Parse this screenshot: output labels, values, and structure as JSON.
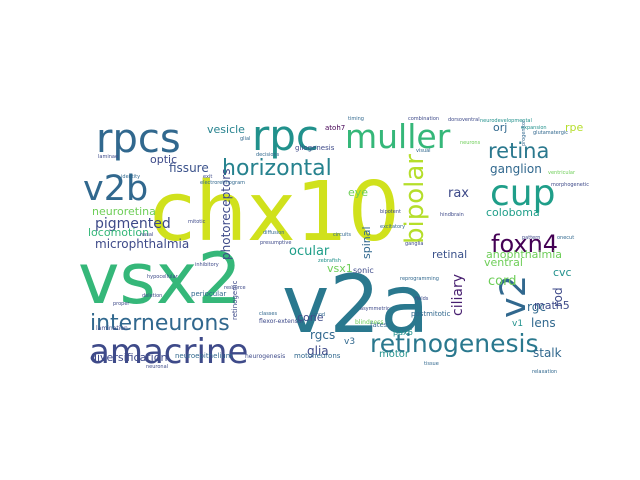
{
  "figure": {
    "type": "word-cloud",
    "background": "#ffffff",
    "palette": "viridis",
    "words": [
      {
        "text": "chx10",
        "color": "#d0e11c"
      },
      {
        "text": "v2a",
        "color": "#2a788e"
      },
      {
        "text": "vsx2",
        "color": "#35b779"
      },
      {
        "text": "amacrine",
        "color": "#3e4a89"
      },
      {
        "text": "rpcs",
        "color": "#31688e"
      },
      {
        "text": "rpc",
        "color": "#21918c"
      },
      {
        "text": "muller",
        "color": "#35b779"
      },
      {
        "text": "cup",
        "color": "#1f9e89"
      },
      {
        "text": "v2b",
        "color": "#31688e"
      },
      {
        "text": "retinogenesis",
        "color": "#2a788e"
      },
      {
        "text": "horizontal",
        "color": "#26828e"
      },
      {
        "text": "bipolar",
        "color": "#b5de2b"
      },
      {
        "text": "foxn4",
        "color": "#440154"
      },
      {
        "text": "v2",
        "color": "#31688e"
      },
      {
        "text": "interneurons",
        "color": "#31688e"
      },
      {
        "text": "retina",
        "color": "#2a788e"
      },
      {
        "text": "photoreceptors",
        "color": "#3e4a89"
      },
      {
        "text": "ganglion",
        "color": "#31688e"
      },
      {
        "text": "pigmented",
        "color": "#3e4a89"
      },
      {
        "text": "neuroretina",
        "color": "#6ece58"
      },
      {
        "text": "microphthalmia",
        "color": "#3e4a89"
      },
      {
        "text": "locomotion",
        "color": "#35b779"
      },
      {
        "text": "coloboma",
        "color": "#1f9e89"
      },
      {
        "text": "anophthalmia",
        "color": "#6ece58"
      },
      {
        "text": "fissure",
        "color": "#3b528b"
      },
      {
        "text": "optic",
        "color": "#3e4a89"
      },
      {
        "text": "vesicle",
        "color": "#26828e"
      },
      {
        "text": "rpe",
        "color": "#b5de2b"
      },
      {
        "text": "orj",
        "color": "#31688e"
      },
      {
        "text": "rax",
        "color": "#3e4a89"
      },
      {
        "text": "eye",
        "color": "#6ece58"
      },
      {
        "text": "ocular",
        "color": "#1f9e89"
      },
      {
        "text": "spinal",
        "color": "#31688e"
      },
      {
        "text": "retinal",
        "color": "#3b528b"
      },
      {
        "text": "ciliary",
        "color": "#481f70"
      },
      {
        "text": "cord",
        "color": "#6ece58"
      },
      {
        "text": "cvc",
        "color": "#21918c"
      },
      {
        "text": "rgc",
        "color": "#31688e"
      },
      {
        "text": "rod",
        "color": "#3e4a89"
      },
      {
        "text": "lens",
        "color": "#31688e"
      },
      {
        "text": "math5",
        "color": "#3e4a89"
      },
      {
        "text": "ventral",
        "color": "#6ece58"
      },
      {
        "text": "cone",
        "color": "#3e4a89"
      },
      {
        "text": "rgcs",
        "color": "#31688e"
      },
      {
        "text": "glia",
        "color": "#3e4a89"
      },
      {
        "text": "vsx1",
        "color": "#6ece58"
      },
      {
        "text": "stalk",
        "color": "#31688e"
      },
      {
        "text": "diversification",
        "color": "#3e4a89"
      },
      {
        "text": "motor",
        "color": "#21918c"
      },
      {
        "text": "retinogenic",
        "color": "#3e4a89"
      },
      {
        "text": "v3",
        "color": "#31688e"
      },
      {
        "text": "pax6",
        "color": "#21918c"
      },
      {
        "text": "v1",
        "color": "#21918c"
      },
      {
        "text": "sonic",
        "color": "#3e4a89"
      },
      {
        "text": "fates",
        "color": "#31688e"
      },
      {
        "text": "motoneurons",
        "color": "#31688e"
      },
      {
        "text": "neurogenesis",
        "color": "#3e4a89"
      },
      {
        "text": "postmitotic",
        "color": "#31688e"
      },
      {
        "text": "gliogenesis",
        "color": "#3e4a89"
      },
      {
        "text": "atoh7",
        "color": "#440154"
      },
      {
        "text": "neuroepithelium",
        "color": "#31688e"
      },
      {
        "text": "lamination",
        "color": "#3e4a89"
      },
      {
        "text": "periocular",
        "color": "#31688e"
      },
      {
        "text": "blindness",
        "color": "#6ece58"
      },
      {
        "text": "flexor-extensor",
        "color": "#3e4a89"
      },
      {
        "text": "combination",
        "color": "#3e4a89"
      },
      {
        "text": "glutamatergic",
        "color": "#31688e"
      },
      {
        "text": "expansion",
        "color": "#21918c"
      },
      {
        "text": "visual",
        "color": "#31688e"
      },
      {
        "text": "resource",
        "color": "#3e4a89"
      },
      {
        "text": "classes",
        "color": "#31688e"
      },
      {
        "text": "exit",
        "color": "#3e4a89"
      },
      {
        "text": "deletion",
        "color": "#3e4a89"
      },
      {
        "text": "tmod",
        "color": "#31688e"
      },
      {
        "text": "dorsoventral",
        "color": "#3e4a89"
      },
      {
        "text": "progenitor",
        "color": "#31688e"
      },
      {
        "text": "neurons",
        "color": "#6ece58"
      },
      {
        "text": "hypocellular",
        "color": "#3e4a89"
      },
      {
        "text": "glial",
        "color": "#31688e"
      },
      {
        "text": "presumptive",
        "color": "#3e4a89"
      },
      {
        "text": "decisions",
        "color": "#31688e"
      },
      {
        "text": "laminae",
        "color": "#3e4a89"
      },
      {
        "text": "reprogramming",
        "color": "#31688e"
      },
      {
        "text": "bipotent",
        "color": "#3e4a89"
      },
      {
        "text": "neurodevelopmental",
        "color": "#21918c"
      },
      {
        "text": "identity",
        "color": "#31688e"
      },
      {
        "text": "fields",
        "color": "#3e4a89"
      },
      {
        "text": "ventricular",
        "color": "#6ece58"
      },
      {
        "text": "inhibitory",
        "color": "#3e4a89"
      },
      {
        "text": "diffusion",
        "color": "#31688e"
      },
      {
        "text": "morphogenetic",
        "color": "#3e4a89"
      },
      {
        "text": "electroretinogram",
        "color": "#31688e"
      },
      {
        "text": "hindbrain",
        "color": "#3e4a89"
      },
      {
        "text": "circuits",
        "color": "#31688e"
      },
      {
        "text": "ganglia",
        "color": "#3e4a89"
      },
      {
        "text": "neuronal",
        "color": "#3e4a89"
      },
      {
        "text": "onecut",
        "color": "#31688e"
      },
      {
        "text": "zebrafish",
        "color": "#21918c"
      },
      {
        "text": "nasal",
        "color": "#3e4a89"
      },
      {
        "text": "tissue",
        "color": "#31688e"
      },
      {
        "text": "mitotic",
        "color": "#3e4a89"
      },
      {
        "text": "excitatory",
        "color": "#31688e"
      },
      {
        "text": "pattern",
        "color": "#3e4a89"
      },
      {
        "text": "relaxation",
        "color": "#31688e"
      },
      {
        "text": "proper",
        "color": "#3e4a89"
      },
      {
        "text": "timing",
        "color": "#31688e"
      },
      {
        "text": "asymmetric",
        "color": "#3e4a89"
      }
    ]
  }
}
